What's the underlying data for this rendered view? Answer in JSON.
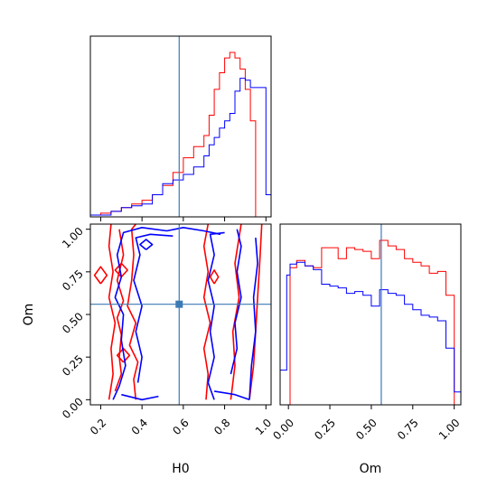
{
  "chart_data": [
    {
      "type": "histogram",
      "panel": "H0 marginal",
      "bin_edges": [
        0.15,
        0.2,
        0.25,
        0.3,
        0.35,
        0.4,
        0.45,
        0.5,
        0.55,
        0.6,
        0.65,
        0.7,
        0.725,
        0.75,
        0.775,
        0.8,
        0.825,
        0.85,
        0.875,
        0.9,
        0.925,
        0.95,
        1.0,
        1.025
      ],
      "series": [
        {
          "color": "#ff0000",
          "counts": [
            0.01,
            0.02,
            0.03,
            0.05,
            0.07,
            0.09,
            0.12,
            0.17,
            0.24,
            0.32,
            0.38,
            0.44,
            0.55,
            0.69,
            0.78,
            0.86,
            0.89,
            0.86,
            0.8,
            0.69,
            0.52,
            0.0,
            0.0
          ]
        },
        {
          "color": "#0000ff",
          "counts": [
            0.01,
            0.01,
            0.03,
            0.05,
            0.06,
            0.07,
            0.12,
            0.18,
            0.2,
            0.23,
            0.27,
            0.33,
            0.39,
            0.43,
            0.48,
            0.52,
            0.56,
            0.68,
            0.75,
            0.74,
            0.7,
            0.7,
            0.12
          ]
        }
      ],
      "marker_x": 0.58,
      "xlim": [
        0.15,
        1.025
      ],
      "xticks": [
        "0.2",
        "0.4",
        "0.6",
        "0.8",
        "1.0"
      ]
    },
    {
      "type": "contour",
      "panel": "H0 vs Om joint",
      "xlabel": "H0",
      "ylabel": "Om",
      "xlim": [
        0.15,
        1.025
      ],
      "ylim": [
        -0.03,
        1.03
      ],
      "xticks": [
        "0.2",
        "0.4",
        "0.6",
        "0.8",
        "1.0"
      ],
      "yticks": [
        "0.00",
        "0.25",
        "0.50",
        "0.75",
        "1.00"
      ],
      "marker": {
        "x": 0.58,
        "y": 0.56
      },
      "series": [
        {
          "color": "#ff0000",
          "contours": [
            [
              [
                0.24,
                0.0
              ],
              [
                0.26,
                0.15
              ],
              [
                0.25,
                0.3
              ],
              [
                0.27,
                0.45
              ],
              [
                0.24,
                0.6
              ],
              [
                0.26,
                0.75
              ],
              [
                0.24,
                0.9
              ],
              [
                0.25,
                1.03
              ]
            ],
            [
              [
                0.37,
                0.0
              ],
              [
                0.36,
                0.12
              ],
              [
                0.38,
                0.22
              ],
              [
                0.34,
                0.32
              ],
              [
                0.37,
                0.45
              ],
              [
                0.33,
                0.55
              ],
              [
                0.35,
                0.7
              ],
              [
                0.36,
                0.85
              ],
              [
                0.35,
                1.0
              ],
              [
                0.37,
                1.03
              ]
            ],
            [
              [
                0.27,
                0.05
              ],
              [
                0.3,
                0.15
              ],
              [
                0.29,
                0.25
              ],
              [
                0.3,
                0.38
              ],
              [
                0.28,
                0.48
              ],
              [
                0.31,
                0.58
              ],
              [
                0.28,
                0.7
              ],
              [
                0.31,
                0.85
              ],
              [
                0.29,
                1.0
              ]
            ],
            [
              [
                0.71,
                0.0
              ],
              [
                0.72,
                0.15
              ],
              [
                0.7,
                0.3
              ],
              [
                0.73,
                0.45
              ],
              [
                0.7,
                0.6
              ],
              [
                0.72,
                0.75
              ],
              [
                0.7,
                0.9
              ],
              [
                0.72,
                1.03
              ]
            ],
            [
              [
                0.83,
                0.0
              ],
              [
                0.85,
                0.2
              ],
              [
                0.84,
                0.4
              ],
              [
                0.87,
                0.6
              ],
              [
                0.85,
                0.8
              ],
              [
                0.88,
                1.03
              ]
            ],
            [
              [
                0.92,
                0.0
              ],
              [
                0.94,
                0.2
              ],
              [
                0.95,
                0.4
              ],
              [
                0.96,
                0.6
              ],
              [
                0.97,
                0.8
              ],
              [
                0.98,
                1.03
              ]
            ],
            [
              [
                0.2,
                0.68
              ],
              [
                0.23,
                0.73
              ],
              [
                0.2,
                0.78
              ],
              [
                0.17,
                0.73
              ],
              [
                0.2,
                0.68
              ]
            ],
            [
              [
                0.3,
                0.72
              ],
              [
                0.33,
                0.76
              ],
              [
                0.3,
                0.8
              ],
              [
                0.27,
                0.76
              ],
              [
                0.3,
                0.72
              ]
            ],
            [
              [
                0.31,
                0.22
              ],
              [
                0.34,
                0.26
              ],
              [
                0.31,
                0.3
              ],
              [
                0.28,
                0.26
              ],
              [
                0.31,
                0.22
              ]
            ],
            [
              [
                0.75,
                0.68
              ],
              [
                0.77,
                0.72
              ],
              [
                0.75,
                0.76
              ],
              [
                0.73,
                0.72
              ],
              [
                0.75,
                0.68
              ]
            ]
          ]
        },
        {
          "color": "#0000ff",
          "contours": [
            [
              [
                0.26,
                0.0
              ],
              [
                0.29,
                0.08
              ],
              [
                0.32,
                0.2
              ],
              [
                0.3,
                0.35
              ],
              [
                0.31,
                0.5
              ],
              [
                0.27,
                0.6
              ],
              [
                0.3,
                0.72
              ],
              [
                0.28,
                0.85
              ],
              [
                0.31,
                0.98
              ],
              [
                0.4,
                1.01
              ],
              [
                0.52,
                0.99
              ],
              [
                0.6,
                1.01
              ],
              [
                0.7,
                0.99
              ],
              [
                0.78,
                0.97
              ]
            ],
            [
              [
                0.3,
                0.03
              ],
              [
                0.4,
                0.0
              ],
              [
                0.48,
                0.02
              ]
            ],
            [
              [
                0.38,
                0.1
              ],
              [
                0.4,
                0.25
              ],
              [
                0.37,
                0.4
              ],
              [
                0.4,
                0.55
              ],
              [
                0.36,
                0.7
              ],
              [
                0.39,
                0.85
              ],
              [
                0.37,
                0.95
              ],
              [
                0.44,
                0.97
              ],
              [
                0.55,
                0.96
              ]
            ],
            [
              [
                0.75,
                0.0
              ],
              [
                0.72,
                0.1
              ],
              [
                0.75,
                0.25
              ],
              [
                0.73,
                0.4
              ],
              [
                0.75,
                0.55
              ],
              [
                0.72,
                0.7
              ],
              [
                0.75,
                0.85
              ],
              [
                0.73,
                0.97
              ],
              [
                0.8,
                0.98
              ]
            ],
            [
              [
                0.75,
                0.05
              ],
              [
                0.85,
                0.03
              ],
              [
                0.92,
                0.0
              ]
            ],
            [
              [
                0.83,
                0.15
              ],
              [
                0.86,
                0.3
              ],
              [
                0.85,
                0.45
              ],
              [
                0.88,
                0.6
              ],
              [
                0.86,
                0.75
              ],
              [
                0.88,
                0.9
              ],
              [
                0.86,
                1.0
              ]
            ],
            [
              [
                0.92,
                0.0
              ],
              [
                0.93,
                0.2
              ],
              [
                0.95,
                0.4
              ],
              [
                0.94,
                0.6
              ],
              [
                0.96,
                0.8
              ],
              [
                0.95,
                0.95
              ]
            ],
            [
              [
                0.42,
                0.88
              ],
              [
                0.45,
                0.91
              ],
              [
                0.42,
                0.94
              ],
              [
                0.39,
                0.91
              ],
              [
                0.42,
                0.88
              ]
            ]
          ]
        }
      ]
    },
    {
      "type": "histogram",
      "panel": "Om marginal",
      "xlabel": "Om",
      "bin_edges": [
        -0.05,
        -0.01,
        0.01,
        0.05,
        0.1,
        0.15,
        0.2,
        0.25,
        0.3,
        0.35,
        0.4,
        0.45,
        0.5,
        0.55,
        0.6,
        0.65,
        0.7,
        0.75,
        0.8,
        0.85,
        0.9,
        0.95,
        1.0,
        1.04
      ],
      "series": [
        {
          "color": "#ff0000",
          "counts": [
            0.0,
            0.0,
            0.75,
            0.79,
            0.76,
            0.75,
            0.86,
            0.86,
            0.8,
            0.86,
            0.85,
            0.84,
            0.8,
            0.9,
            0.87,
            0.85,
            0.8,
            0.78,
            0.76,
            0.72,
            0.73,
            0.6,
            0.0
          ]
        },
        {
          "color": "#0000ff",
          "counts": [
            0.19,
            0.71,
            0.77,
            0.78,
            0.76,
            0.74,
            0.66,
            0.65,
            0.64,
            0.61,
            0.62,
            0.6,
            0.54,
            0.63,
            0.61,
            0.6,
            0.55,
            0.52,
            0.49,
            0.48,
            0.46,
            0.31,
            0.07
          ]
        }
      ],
      "marker_x": 0.56,
      "xlim": [
        -0.05,
        1.04
      ],
      "xticks": [
        "0.00",
        "0.25",
        "0.50",
        "0.75",
        "1.00"
      ]
    }
  ]
}
